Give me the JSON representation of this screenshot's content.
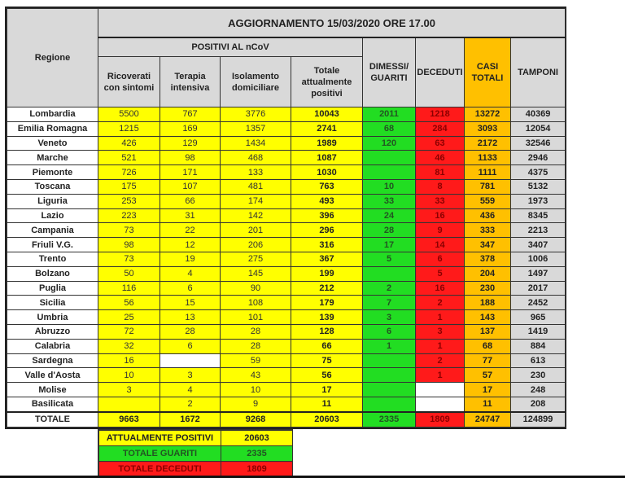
{
  "header": {
    "title": "AGGIORNAMENTO 15/03/2020 ORE 17.00",
    "regione": "Regione",
    "positivi_group": "POSITIVI AL nCoV",
    "columns": [
      "Ricoverati con sintomi",
      "Terapia intensiva",
      "Isolamento domiciliare",
      "Totale attualmente positivi",
      "DIMESSI/ GUARITI",
      "DECEDUTI",
      "CASI TOTALI",
      "TAMPONI"
    ]
  },
  "colors": {
    "yellow": "#ffff00",
    "green": "#22dd22",
    "red": "#ff1a1a",
    "orange": "#ffc000",
    "gray": "#d9d9d9"
  },
  "rows": [
    {
      "regione": "Lombardia",
      "ricoverati": "5500",
      "terapia": "767",
      "isolamento": "3776",
      "totale": "10043",
      "guariti": "2011",
      "deceduti": "1218",
      "casi": "13272",
      "tamponi": "40369"
    },
    {
      "regione": "Emilia Romagna",
      "ricoverati": "1215",
      "terapia": "169",
      "isolamento": "1357",
      "totale": "2741",
      "guariti": "68",
      "deceduti": "284",
      "casi": "3093",
      "tamponi": "12054"
    },
    {
      "regione": "Veneto",
      "ricoverati": "426",
      "terapia": "129",
      "isolamento": "1434",
      "totale": "1989",
      "guariti": "120",
      "deceduti": "63",
      "casi": "2172",
      "tamponi": "32546"
    },
    {
      "regione": "Marche",
      "ricoverati": "521",
      "terapia": "98",
      "isolamento": "468",
      "totale": "1087",
      "guariti": "",
      "deceduti": "46",
      "casi": "1133",
      "tamponi": "2946"
    },
    {
      "regione": "Piemonte",
      "ricoverati": "726",
      "terapia": "171",
      "isolamento": "133",
      "totale": "1030",
      "guariti": "",
      "deceduti": "81",
      "casi": "1111",
      "tamponi": "4375"
    },
    {
      "regione": "Toscana",
      "ricoverati": "175",
      "terapia": "107",
      "isolamento": "481",
      "totale": "763",
      "guariti": "10",
      "deceduti": "8",
      "casi": "781",
      "tamponi": "5132"
    },
    {
      "regione": "Liguria",
      "ricoverati": "253",
      "terapia": "66",
      "isolamento": "174",
      "totale": "493",
      "guariti": "33",
      "deceduti": "33",
      "casi": "559",
      "tamponi": "1973"
    },
    {
      "regione": "Lazio",
      "ricoverati": "223",
      "terapia": "31",
      "isolamento": "142",
      "totale": "396",
      "guariti": "24",
      "deceduti": "16",
      "casi": "436",
      "tamponi": "8345"
    },
    {
      "regione": "Campania",
      "ricoverati": "73",
      "terapia": "22",
      "isolamento": "201",
      "totale": "296",
      "guariti": "28",
      "deceduti": "9",
      "casi": "333",
      "tamponi": "2213"
    },
    {
      "regione": "Friuli V.G.",
      "ricoverati": "98",
      "terapia": "12",
      "isolamento": "206",
      "totale": "316",
      "guariti": "17",
      "deceduti": "14",
      "casi": "347",
      "tamponi": "3407"
    },
    {
      "regione": "Trento",
      "ricoverati": "73",
      "terapia": "19",
      "isolamento": "275",
      "totale": "367",
      "guariti": "5",
      "deceduti": "6",
      "casi": "378",
      "tamponi": "1006"
    },
    {
      "regione": "Bolzano",
      "ricoverati": "50",
      "terapia": "4",
      "isolamento": "145",
      "totale": "199",
      "guariti": "",
      "deceduti": "5",
      "casi": "204",
      "tamponi": "1497"
    },
    {
      "regione": "Puglia",
      "ricoverati": "116",
      "terapia": "6",
      "isolamento": "90",
      "totale": "212",
      "guariti": "2",
      "deceduti": "16",
      "casi": "230",
      "tamponi": "2017"
    },
    {
      "regione": "Sicilia",
      "ricoverati": "56",
      "terapia": "15",
      "isolamento": "108",
      "totale": "179",
      "guariti": "7",
      "deceduti": "2",
      "casi": "188",
      "tamponi": "2452"
    },
    {
      "regione": "Umbria",
      "ricoverati": "25",
      "terapia": "13",
      "isolamento": "101",
      "totale": "139",
      "guariti": "3",
      "deceduti": "1",
      "casi": "143",
      "tamponi": "965"
    },
    {
      "regione": "Abruzzo",
      "ricoverati": "72",
      "terapia": "28",
      "isolamento": "28",
      "totale": "128",
      "guariti": "6",
      "deceduti": "3",
      "casi": "137",
      "tamponi": "1419"
    },
    {
      "regione": "Calabria",
      "ricoverati": "32",
      "terapia": "6",
      "isolamento": "28",
      "totale": "66",
      "guariti": "1",
      "deceduti": "1",
      "casi": "68",
      "tamponi": "884"
    },
    {
      "regione": "Sardegna",
      "ricoverati": "16",
      "terapia": null,
      "isolamento": "59",
      "totale": "75",
      "guariti": "",
      "deceduti": "2",
      "casi": "77",
      "tamponi": "613"
    },
    {
      "regione": "Valle d'Aosta",
      "ricoverati": "10",
      "terapia": "3",
      "isolamento": "43",
      "totale": "56",
      "guariti": "",
      "deceduti": "1",
      "casi": "57",
      "tamponi": "230"
    },
    {
      "regione": "Molise",
      "ricoverati": "3",
      "terapia": "4",
      "isolamento": "10",
      "totale": "17",
      "guariti": "",
      "deceduti": null,
      "casi": "17",
      "tamponi": "248"
    },
    {
      "regione": "Basilicata",
      "ricoverati": "",
      "terapia": "2",
      "isolamento": "9",
      "totale": "11",
      "guariti": "",
      "deceduti": null,
      "casi": "11",
      "tamponi": "208"
    }
  ],
  "totale": {
    "regione": "TOTALE",
    "ricoverati": "9663",
    "terapia": "1672",
    "isolamento": "9268",
    "totale": "20603",
    "guariti": "2335",
    "deceduti": "1809",
    "casi": "24747",
    "tamponi": "124899"
  },
  "summary": [
    {
      "label": "ATTUALMENTE POSITIVI",
      "value": "20603"
    },
    {
      "label": "TOTALE GUARITI",
      "value": "2335"
    },
    {
      "label": "TOTALE DECEDUTI",
      "value": "1809"
    }
  ]
}
